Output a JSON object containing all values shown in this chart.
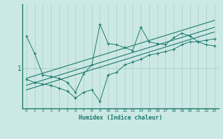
{
  "xlabel": "Humidex (Indice chaleur)",
  "background_color": "#cce8e4",
  "line_color": "#1a7a6e",
  "grid_color": "#aaccc8",
  "xlim": [
    -0.5,
    23.5
  ],
  "ylim": [
    0.3,
    2.1
  ],
  "ytick_val": 1,
  "xticks": [
    0,
    1,
    2,
    3,
    4,
    5,
    6,
    7,
    8,
    9,
    10,
    11,
    12,
    13,
    14,
    15,
    16,
    17,
    18,
    19,
    20,
    21,
    22,
    23
  ],
  "series1_x": [
    0,
    1,
    2,
    3,
    4,
    5,
    6,
    7,
    8,
    9,
    10,
    11,
    12,
    13,
    14,
    15,
    16,
    17,
    18,
    19,
    20,
    21,
    22,
    23
  ],
  "series1_y": [
    1.55,
    1.25,
    0.88,
    0.85,
    0.82,
    0.75,
    0.58,
    0.9,
    1.05,
    1.75,
    1.42,
    1.4,
    1.35,
    1.3,
    1.7,
    1.45,
    1.42,
    1.4,
    1.52,
    1.6,
    1.55,
    1.45,
    1.4,
    1.38
  ],
  "series2_x": [
    0,
    1,
    2,
    3,
    4,
    5,
    6,
    7,
    8,
    9,
    10,
    11,
    12,
    13,
    14,
    15,
    16,
    17,
    18,
    19,
    20,
    21,
    22,
    23
  ],
  "series2_y": [
    0.8,
    0.75,
    0.72,
    0.7,
    0.65,
    0.6,
    0.48,
    0.58,
    0.62,
    0.42,
    0.88,
    0.92,
    1.05,
    1.1,
    1.15,
    1.22,
    1.25,
    1.28,
    1.32,
    1.4,
    1.45,
    1.45,
    1.48,
    1.5
  ],
  "line1_x": [
    0,
    23
  ],
  "line1_y": [
    0.82,
    1.82
  ],
  "line2_x": [
    0,
    23
  ],
  "line2_y": [
    0.62,
    1.62
  ],
  "line3_x": [
    0,
    23
  ],
  "line3_y": [
    0.7,
    1.7
  ]
}
